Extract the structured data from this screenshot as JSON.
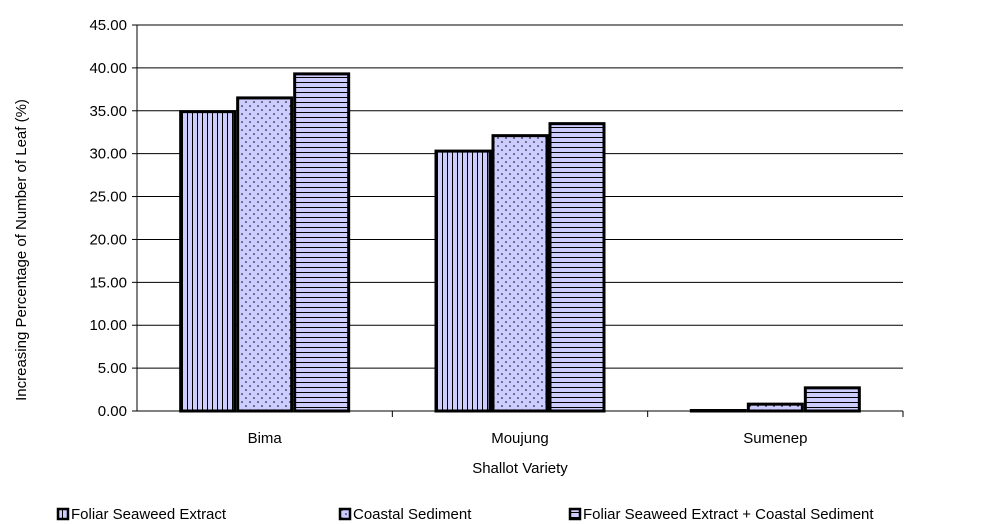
{
  "chart_data": {
    "type": "bar",
    "title": "",
    "xlabel": "Shallot Variety",
    "ylabel": "Increasing Percentage of Number of Leaf (%)",
    "categories": [
      "Bima",
      "Moujung",
      "Sumenep"
    ],
    "series": [
      {
        "name": "Foliar Seaweed Extract",
        "values": [
          34.9,
          30.3,
          0.0
        ],
        "pattern": "vertical-lines"
      },
      {
        "name": "Coastal Sediment",
        "values": [
          36.5,
          32.1,
          0.8
        ],
        "pattern": "dots"
      },
      {
        "name": "Foliar Seaweed Extract + Coastal Sediment",
        "values": [
          39.3,
          33.5,
          2.7
        ],
        "pattern": "horizontal-lines"
      }
    ],
    "ylim": [
      0,
      45
    ],
    "ytick_step": 5,
    "ytick_labels": [
      "0.00",
      "5.00",
      "10.00",
      "15.00",
      "20.00",
      "25.00",
      "30.00",
      "35.00",
      "40.00",
      "45.00"
    ],
    "grid": true,
    "legend_position": "bottom",
    "colors": {
      "bar_fill": "#ccccff",
      "outline": "#000000",
      "grid": "#000000"
    }
  }
}
